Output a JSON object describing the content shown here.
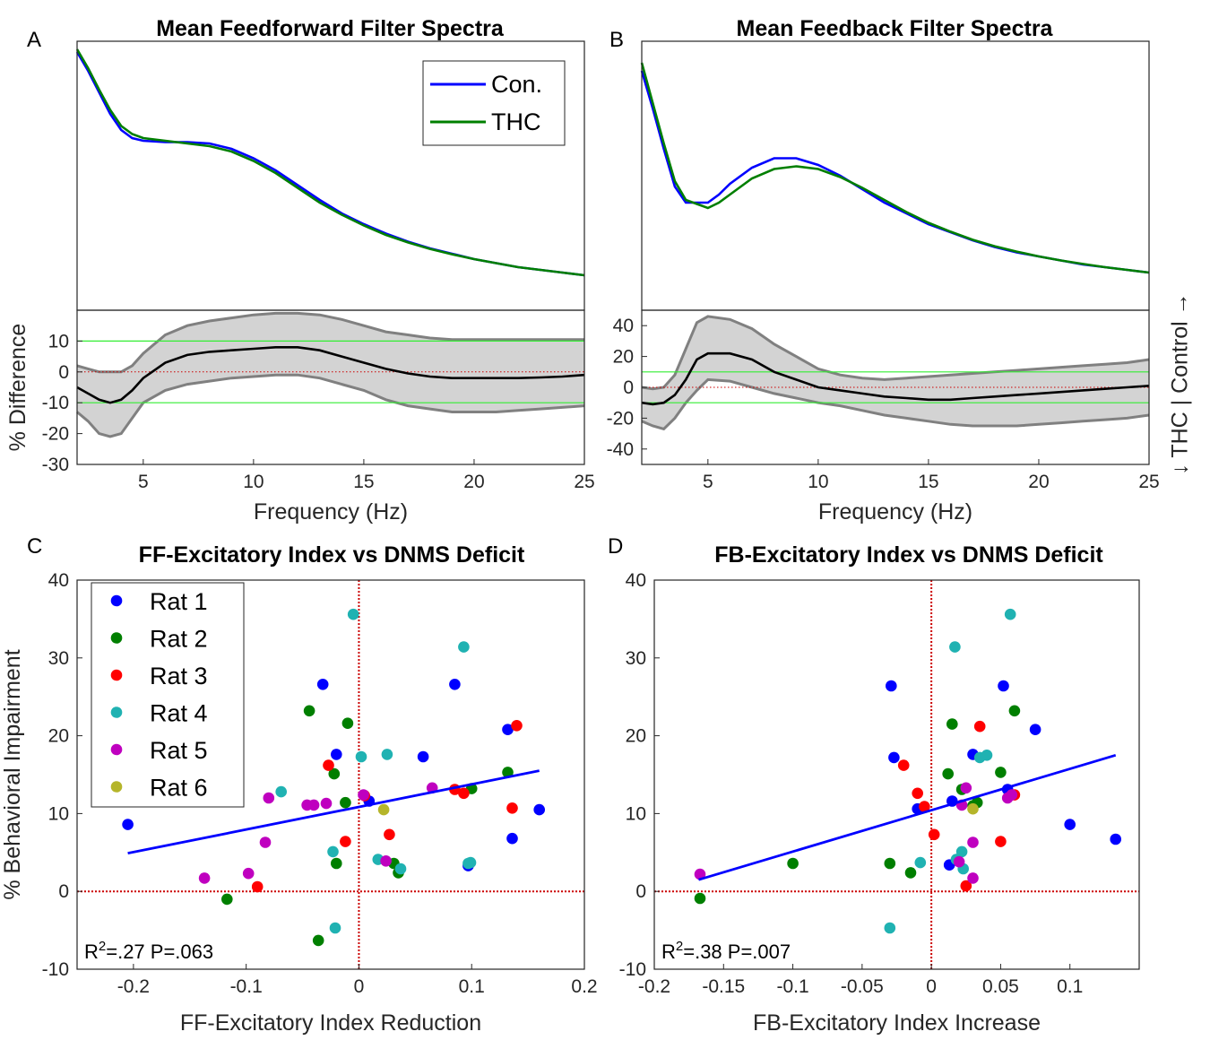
{
  "panels": {
    "A": {
      "letter": "A",
      "title": "Mean Feedforward Filter Spectra"
    },
    "B": {
      "letter": "B",
      "title": "Mean Feedback Filter Spectra"
    },
    "C": {
      "letter": "C",
      "title": "FF-Excitatory Index vs DNMS Deficit"
    },
    "D": {
      "letter": "D",
      "title": "FB-Excitatory Index vs DNMS Deficit"
    }
  },
  "side_label": "↓ THC  |  Control →",
  "colors": {
    "control": "#0000ff",
    "thc": "#007f00",
    "ci_fill": "#d3d3d3",
    "ci_edge": "#808080",
    "mean_diff": "#000000",
    "threshold": "#33ee33",
    "zero_line": "#cc0000",
    "rats": [
      "#0000ff",
      "#007f00",
      "#ff0000",
      "#20b2b2",
      "#bf00bf",
      "#b5b52a"
    ]
  },
  "chart_data": [
    {
      "id": "A_spectra",
      "type": "line",
      "title": "Mean Feedforward Filter Spectra",
      "xlim": [
        2,
        25
      ],
      "ylim": [
        0,
        1
      ],
      "y_ticks_shown": false,
      "legend": {
        "entries": [
          "Con.",
          "THC"
        ],
        "location": "top-right"
      },
      "series": [
        {
          "name": "Con.",
          "color_key": "control",
          "x": [
            2,
            2.5,
            3,
            3.5,
            4,
            4.5,
            5,
            6,
            7,
            8,
            9,
            10,
            11,
            12,
            13,
            14,
            15,
            16,
            17,
            18,
            19,
            20,
            21,
            22,
            23,
            24,
            25
          ],
          "y": [
            0.96,
            0.89,
            0.81,
            0.73,
            0.67,
            0.64,
            0.63,
            0.625,
            0.625,
            0.62,
            0.6,
            0.565,
            0.52,
            0.465,
            0.41,
            0.36,
            0.32,
            0.285,
            0.255,
            0.23,
            0.21,
            0.19,
            0.175,
            0.16,
            0.15,
            0.14,
            0.13
          ]
        },
        {
          "name": "THC",
          "color_key": "thc",
          "x": [
            2,
            2.5,
            3,
            3.5,
            4,
            4.5,
            5,
            6,
            7,
            8,
            9,
            10,
            11,
            12,
            13,
            14,
            15,
            16,
            17,
            18,
            19,
            20,
            21,
            22,
            23,
            24,
            25
          ],
          "y": [
            0.97,
            0.9,
            0.82,
            0.745,
            0.685,
            0.655,
            0.64,
            0.63,
            0.62,
            0.61,
            0.59,
            0.555,
            0.51,
            0.455,
            0.4,
            0.355,
            0.315,
            0.28,
            0.252,
            0.228,
            0.208,
            0.19,
            0.175,
            0.16,
            0.15,
            0.14,
            0.13
          ]
        }
      ]
    },
    {
      "id": "A_difference",
      "type": "area",
      "ylabel": "% Difference",
      "xlabel": "Frequency (Hz)",
      "xlim": [
        2,
        25
      ],
      "ylim": [
        -30,
        20
      ],
      "x_ticks": [
        5,
        10,
        15,
        20,
        25
      ],
      "y_ticks": [
        -30,
        -20,
        -10,
        0,
        10
      ],
      "thresholds": [
        10,
        -10
      ],
      "grid": false,
      "x": [
        2,
        2.5,
        3,
        3.5,
        4,
        4.5,
        5,
        6,
        7,
        8,
        9,
        10,
        11,
        12,
        13,
        14,
        15,
        16,
        17,
        18,
        19,
        20,
        21,
        22,
        23,
        24,
        25
      ],
      "mean": [
        -5,
        -7,
        -9,
        -10,
        -9,
        -6,
        -2,
        3,
        5.5,
        6.5,
        7,
        7.5,
        8,
        8,
        7,
        5,
        3,
        1,
        -0.5,
        -1.5,
        -2,
        -2,
        -2,
        -2,
        -1.8,
        -1.5,
        -1
      ],
      "upper": [
        2,
        1,
        0,
        0,
        0,
        2,
        6,
        12,
        15,
        16.5,
        17.5,
        18.5,
        19,
        19,
        18.5,
        17,
        15,
        13,
        12,
        11,
        10.5,
        10.5,
        10.5,
        10.5,
        10.5,
        10.5,
        10.5
      ],
      "lower": [
        -13,
        -16,
        -20,
        -21,
        -20,
        -15,
        -10,
        -6,
        -4,
        -3,
        -2,
        -1.5,
        -1,
        -1,
        -2,
        -4,
        -6,
        -9,
        -11,
        -12,
        -13,
        -13,
        -13,
        -12.5,
        -12,
        -11.5,
        -11
      ]
    },
    {
      "id": "B_spectra",
      "type": "line",
      "title": "Mean Feedback Filter Spectra",
      "xlim": [
        2,
        25
      ],
      "ylim": [
        0,
        1
      ],
      "y_ticks_shown": false,
      "series": [
        {
          "name": "Con.",
          "color_key": "control",
          "x": [
            2,
            2.5,
            3,
            3.5,
            4,
            4.5,
            5,
            5.5,
            6,
            7,
            8,
            9,
            10,
            11,
            12,
            13,
            14,
            15,
            16,
            17,
            18,
            19,
            20,
            21,
            22,
            23,
            24,
            25
          ],
          "y": [
            0.89,
            0.75,
            0.6,
            0.46,
            0.4,
            0.4,
            0.4,
            0.43,
            0.47,
            0.53,
            0.565,
            0.565,
            0.54,
            0.5,
            0.45,
            0.4,
            0.36,
            0.32,
            0.29,
            0.26,
            0.235,
            0.215,
            0.2,
            0.185,
            0.17,
            0.16,
            0.15,
            0.14
          ]
        },
        {
          "name": "THC",
          "color_key": "thc",
          "x": [
            2,
            2.5,
            3,
            3.5,
            4,
            4.5,
            5,
            5.5,
            6,
            7,
            8,
            9,
            10,
            11,
            12,
            13,
            14,
            15,
            16,
            17,
            18,
            19,
            20,
            21,
            22,
            23,
            24,
            25
          ],
          "y": [
            0.92,
            0.77,
            0.62,
            0.48,
            0.41,
            0.395,
            0.38,
            0.4,
            0.43,
            0.49,
            0.525,
            0.535,
            0.525,
            0.495,
            0.455,
            0.41,
            0.365,
            0.325,
            0.292,
            0.262,
            0.238,
            0.218,
            0.2,
            0.185,
            0.172,
            0.16,
            0.15,
            0.14
          ]
        }
      ]
    },
    {
      "id": "B_difference",
      "type": "area",
      "xlabel": "Frequency (Hz)",
      "xlim": [
        2,
        25
      ],
      "ylim": [
        -50,
        50
      ],
      "x_ticks": [
        5,
        10,
        15,
        20,
        25
      ],
      "y_ticks": [
        -40,
        -20,
        0,
        20,
        40
      ],
      "thresholds": [
        10,
        -10
      ],
      "grid": false,
      "x": [
        2,
        2.5,
        3,
        3.5,
        4,
        4.5,
        5,
        6,
        7,
        8,
        9,
        10,
        11,
        12,
        13,
        14,
        15,
        16,
        17,
        18,
        19,
        20,
        21,
        22,
        23,
        24,
        25
      ],
      "mean": [
        -10,
        -11,
        -10,
        -5,
        5,
        18,
        22,
        22,
        18,
        10,
        5,
        0,
        -2,
        -4,
        -6,
        -7,
        -8,
        -8,
        -7,
        -6,
        -5,
        -4,
        -3,
        -2,
        -1,
        0,
        1
      ],
      "upper": [
        0,
        -1,
        0,
        8,
        25,
        42,
        46,
        44,
        38,
        28,
        20,
        12,
        8,
        6,
        5,
        6,
        7,
        8,
        9,
        10,
        11,
        12,
        13,
        14,
        15,
        16,
        18
      ],
      "lower": [
        -22,
        -25,
        -27,
        -20,
        -10,
        -2,
        5,
        4,
        0,
        -4,
        -7,
        -10,
        -12,
        -15,
        -18,
        -20,
        -22,
        -24,
        -25,
        -25,
        -25,
        -24,
        -23,
        -22,
        -21,
        -20,
        -18
      ]
    },
    {
      "id": "C_scatter",
      "type": "scatter",
      "title": "FF-Excitatory Index vs DNMS Deficit",
      "xlabel": "FF-Excitatory Index Reduction",
      "ylabel": "% Behavioral Impairment",
      "xlim": [
        -0.25,
        0.2
      ],
      "ylim": [
        -10,
        40
      ],
      "x_ticks": [
        -0.2,
        -0.1,
        0,
        0.1,
        0.2
      ],
      "x_tick_labels": [
        "-0.2",
        "-0.1",
        "0",
        "0.1",
        "0.2"
      ],
      "y_ticks": [
        -10,
        0,
        10,
        20,
        30,
        40
      ],
      "legend": {
        "location": "top-left"
      },
      "fit": {
        "x": [
          -0.205,
          0.16
        ],
        "y": [
          4.9,
          15.5
        ]
      },
      "stat": {
        "r2_prefix": "R",
        "r2_sup": "2",
        "r2_suffix": "=.27 P=.063"
      },
      "series": [
        {
          "name": "Rat 1",
          "x": [
            -0.205,
            -0.032,
            -0.02,
            0.009,
            0.057,
            0.085,
            0.097,
            0.132,
            0.136,
            0.16
          ],
          "y": [
            8.6,
            26.6,
            17.6,
            11.6,
            17.3,
            26.6,
            3.3,
            20.8,
            6.8,
            10.5
          ]
        },
        {
          "name": "Rat 2",
          "x": [
            -0.117,
            -0.044,
            -0.036,
            -0.022,
            -0.02,
            -0.012,
            -0.01,
            0.031,
            0.035,
            0.1,
            0.132
          ],
          "y": [
            -1,
            23.2,
            -6.3,
            15.1,
            3.6,
            11.4,
            21.6,
            3.6,
            2.4,
            13.2,
            15.3
          ]
        },
        {
          "name": "Rat 3",
          "x": [
            -0.09,
            -0.027,
            -0.012,
            0.005,
            0.027,
            0.085,
            0.093,
            0.136,
            0.14
          ],
          "y": [
            0.6,
            16.2,
            6.4,
            12.3,
            7.3,
            13.1,
            12.6,
            10.7,
            21.3
          ]
        },
        {
          "name": "Rat 4",
          "x": [
            -0.069,
            -0.023,
            -0.021,
            -0.005,
            0.002,
            0.017,
            0.025,
            0.037,
            0.093,
            0.097,
            0.099
          ],
          "y": [
            12.8,
            5.1,
            -4.7,
            35.6,
            17.3,
            4.1,
            17.6,
            2.9,
            31.4,
            3.6,
            3.7
          ]
        },
        {
          "name": "Rat 5",
          "x": [
            -0.137,
            -0.098,
            -0.08,
            -0.04,
            -0.083,
            -0.046,
            -0.029,
            0.004,
            0.024,
            0.065
          ],
          "y": [
            1.7,
            2.3,
            12,
            11.1,
            6.3,
            11.1,
            11.3,
            12.4,
            3.9,
            13.3
          ]
        },
        {
          "name": "Rat 6",
          "x": [
            0.022
          ],
          "y": [
            10.5
          ]
        }
      ]
    },
    {
      "id": "D_scatter",
      "type": "scatter",
      "title": "FB-Excitatory Index vs DNMS Deficit",
      "xlabel": "FB-Excitatory Index Increase",
      "xlim": [
        -0.2,
        0.15
      ],
      "ylim": [
        -10,
        40
      ],
      "x_ticks": [
        -0.2,
        -0.15,
        -0.1,
        -0.05,
        0,
        0.05,
        0.1
      ],
      "x_tick_labels": [
        "-0.2",
        "-0.15",
        "-0.1",
        "-0.05",
        "0",
        "0.05",
        "0.1"
      ],
      "y_ticks": [
        -10,
        0,
        10,
        20,
        30,
        40
      ],
      "fit": {
        "x": [
          -0.168,
          0.133
        ],
        "y": [
          1.5,
          17.5
        ]
      },
      "stat": {
        "r2_prefix": "R",
        "r2_sup": "2",
        "r2_suffix": "=.38 P=.007"
      },
      "series": [
        {
          "name": "Rat 1",
          "x": [
            -0.029,
            -0.027,
            -0.01,
            0.013,
            0.015,
            0.03,
            0.052,
            0.055,
            0.075,
            0.1,
            0.133
          ],
          "y": [
            26.4,
            17.2,
            10.6,
            3.4,
            11.6,
            17.6,
            26.4,
            13.1,
            20.8,
            8.6,
            6.7
          ]
        },
        {
          "name": "Rat 2",
          "x": [
            -0.167,
            -0.1,
            -0.03,
            -0.015,
            0.012,
            0.015,
            0.022,
            0.03,
            0.033,
            0.05,
            0.06
          ],
          "y": [
            -0.9,
            3.6,
            3.6,
            2.4,
            15.1,
            21.5,
            13.1,
            11,
            11.4,
            15.3,
            23.2
          ]
        },
        {
          "name": "Rat 3",
          "x": [
            -0.02,
            -0.01,
            -0.005,
            0.002,
            0.025,
            0.035,
            0.05,
            0.06
          ],
          "y": [
            16.2,
            12.6,
            10.9,
            7.3,
            0.7,
            21.2,
            6.4,
            12.4
          ]
        },
        {
          "name": "Rat 4",
          "x": [
            -0.03,
            -0.008,
            0.017,
            0.018,
            0.022,
            0.023,
            0.035,
            0.04,
            0.057
          ],
          "y": [
            -4.7,
            3.7,
            31.4,
            4.1,
            5.1,
            2.9,
            17.2,
            17.5,
            35.6
          ]
        },
        {
          "name": "Rat 5",
          "x": [
            -0.167,
            0.025,
            0.022,
            0.03,
            0.03,
            0.02,
            0.055,
            0.058
          ],
          "y": [
            2.2,
            13.3,
            11.1,
            6.3,
            1.7,
            3.8,
            12,
            12.4
          ]
        },
        {
          "name": "Rat 6",
          "x": [
            0.03
          ],
          "y": [
            10.6
          ]
        }
      ]
    }
  ]
}
